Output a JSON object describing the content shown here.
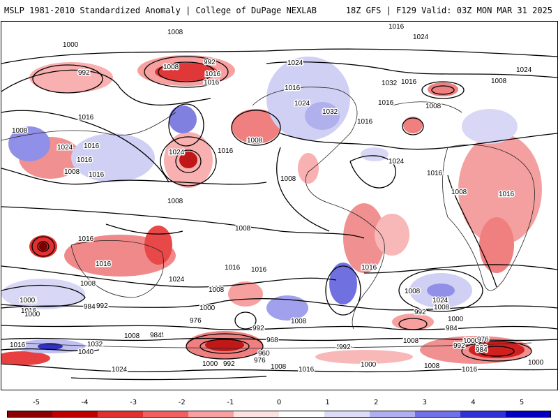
{
  "header": {
    "title": "MSLP 1981-2010 Standardized Anomaly | College of DuPage NEXLAB",
    "run_info": "18Z GFS | F129 Valid: 03Z MON MAR 31 2025"
  },
  "colorbar": {
    "ticks": [
      "-5",
      "-4",
      "-3",
      "-2",
      "-1",
      "0",
      "1",
      "2",
      "3",
      "4",
      "5"
    ],
    "colors": [
      "#8b0000",
      "#c00000",
      "#e03030",
      "#f06060",
      "#f8a0a0",
      "#fde0e0",
      "#ffffff",
      "#dcdcf8",
      "#b0b0f0",
      "#7070e8",
      "#3030d8",
      "#0000c0"
    ]
  },
  "contour_labels": [
    "1008",
    "1016",
    "1024",
    "1000",
    "992",
    "1008",
    "1016",
    "992",
    "1016",
    "1024",
    "1016",
    "1032",
    "1016",
    "1024",
    "1008",
    "1008",
    "1024",
    "1016",
    "1008",
    "1016",
    "1016",
    "1016",
    "1032",
    "1008",
    "1024",
    "1016",
    "1008",
    "1016",
    "1008",
    "1024",
    "1016",
    "1008",
    "1016",
    "1008",
    "1008",
    "1016",
    "1016",
    "1016",
    "1016",
    "1016",
    "1024",
    "1008",
    "1008",
    "1008",
    "1024",
    "1016",
    "1000",
    "1024",
    "1008",
    "1000",
    "984",
    "992",
    "1000",
    "1008",
    "1016",
    "992",
    "976",
    "984",
    "992",
    "1000",
    "1008",
    "984",
    "1000",
    "992",
    "1032",
    "1040",
    "1008",
    "984",
    "968",
    "960",
    "976",
    "992",
    "1000",
    "1008",
    "1016",
    "1024",
    "992",
    "976",
    "984",
    "1000",
    "1000",
    "1008",
    "1016",
    "1016",
    "1024",
    "1000",
    "992"
  ]
}
